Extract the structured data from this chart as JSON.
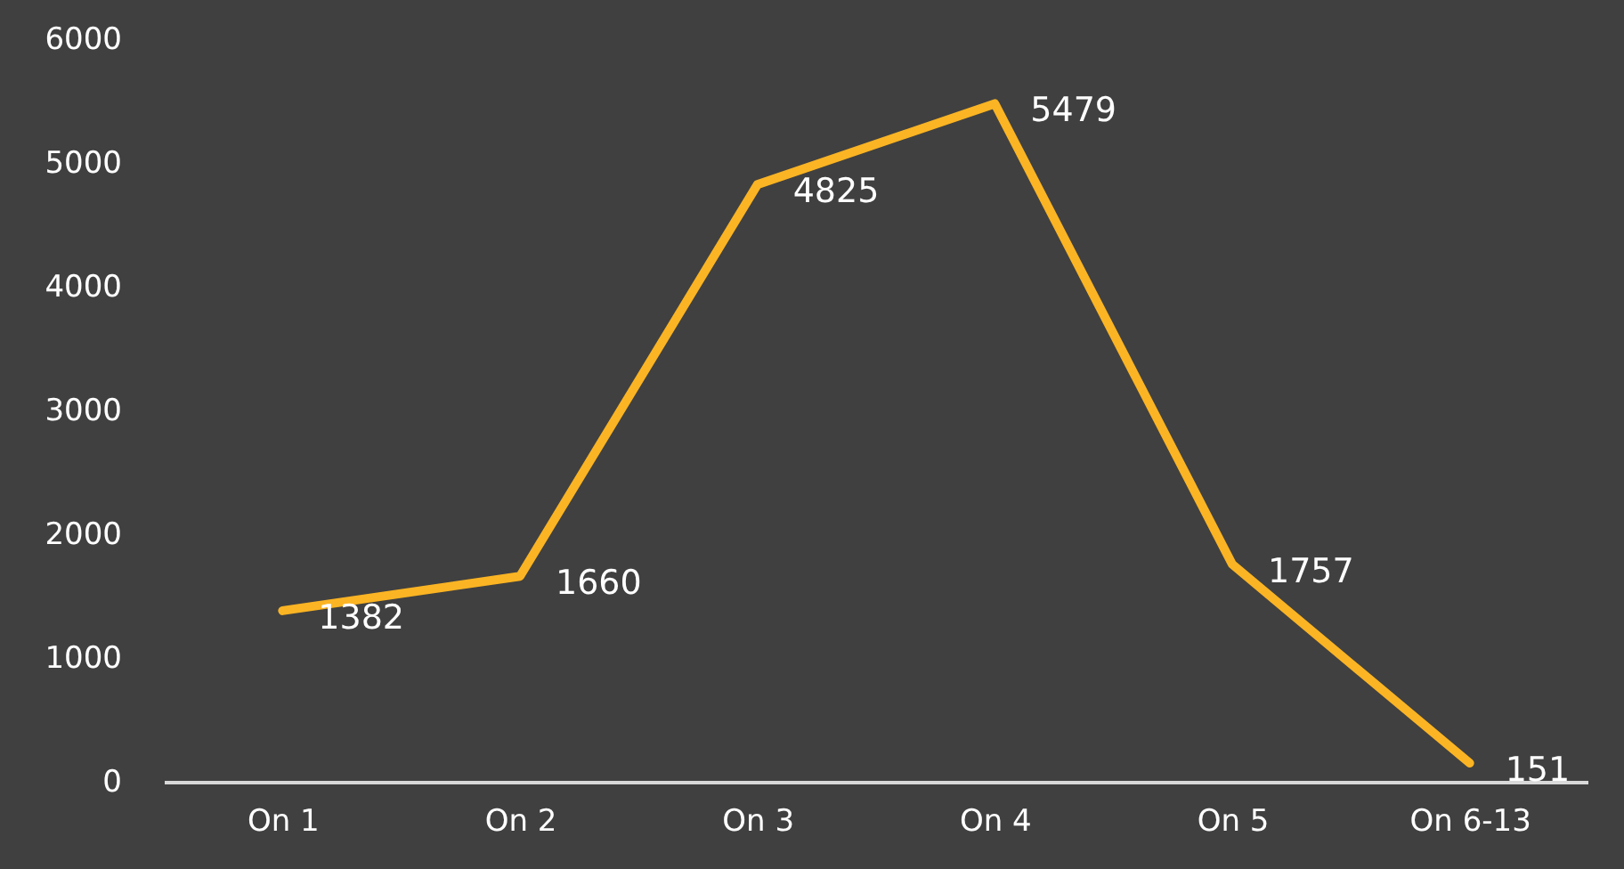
{
  "chart_data": {
    "type": "line",
    "categories": [
      "On 1",
      "On 2",
      "On 3",
      "On 4",
      "On 5",
      "On 6-13"
    ],
    "series": [
      {
        "color": "#fbb423",
        "values": [
          1382,
          1660,
          4825,
          5479,
          1757,
          151
        ]
      }
    ],
    "ylim": [
      0,
      6000
    ],
    "yticks": [
      0,
      1000,
      2000,
      3000,
      4000,
      5000,
      6000
    ],
    "grid": false,
    "data_labels": true,
    "marker": "none"
  }
}
